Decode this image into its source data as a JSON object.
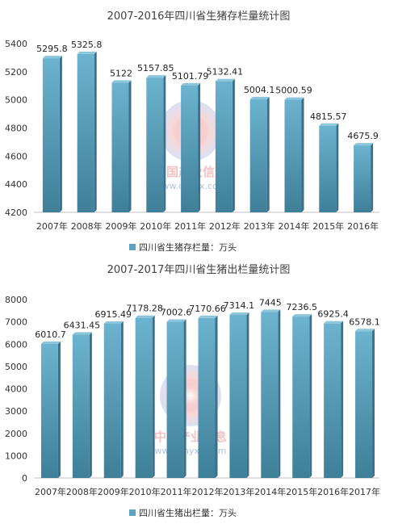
{
  "chart_data": [
    {
      "type": "bar",
      "title": "2007-2016年四川省生猪存栏量统计图",
      "categories": [
        "2007年",
        "2008年",
        "2009年",
        "2010年",
        "2011年",
        "2012年",
        "2013年",
        "2014年",
        "2015年",
        "2016年"
      ],
      "series": [
        {
          "name": "四川省生猪存栏量：万头",
          "values": [
            5295.8,
            5325.8,
            5122,
            5157.85,
            5101.79,
            5132.41,
            5004.1,
            5000.59,
            4815.57,
            4675.9
          ]
        }
      ],
      "value_labels": [
        "5295.8",
        "5325.8",
        "5122",
        "5157.85",
        "5101.79",
        "5132.41",
        "5004.1",
        "5000.59",
        "4815.57",
        "4675.9"
      ],
      "ylim": [
        4200,
        5400
      ],
      "yticks": [
        "4200",
        "4400",
        "4600",
        "4800",
        "5000",
        "5200",
        "5400"
      ],
      "ytick_values": [
        4200,
        4400,
        4600,
        4800,
        5000,
        5200,
        5400
      ],
      "grid": false,
      "legend_position": "bottom",
      "bar_color": "#5ba3c0"
    },
    {
      "type": "bar",
      "title": "2007-2017年四川省生猪出栏量统计图",
      "categories": [
        "2007年",
        "2008年",
        "2009年",
        "2010年",
        "2011年",
        "2012年",
        "2013年",
        "2014年",
        "2015年",
        "2016年",
        "2017年"
      ],
      "series": [
        {
          "name": "四川省生猪出栏量：万头",
          "values": [
            6010.7,
            6431.45,
            6915.49,
            7178.28,
            7002.6,
            7170.66,
            7314.1,
            7445,
            7236.5,
            6925.4,
            6578.1
          ]
        }
      ],
      "value_labels": [
        "6010.7",
        "6431.45",
        "6915.49",
        "7178.28",
        "7002.6",
        "7170.66",
        "7314.1",
        "7445",
        "7236.5",
        "6925.4",
        "6578.1"
      ],
      "ylim": [
        0,
        8000
      ],
      "yticks": [
        "0",
        "1000",
        "2000",
        "3000",
        "4000",
        "5000",
        "6000",
        "7000",
        "8000"
      ],
      "ytick_values": [
        0,
        1000,
        2000,
        3000,
        4000,
        5000,
        6000,
        7000,
        8000
      ],
      "grid": false,
      "legend_position": "bottom",
      "bar_color": "#5ba3c0"
    }
  ],
  "watermark": {
    "text": "中国产业信息",
    "url": "www.chyxx.com"
  }
}
